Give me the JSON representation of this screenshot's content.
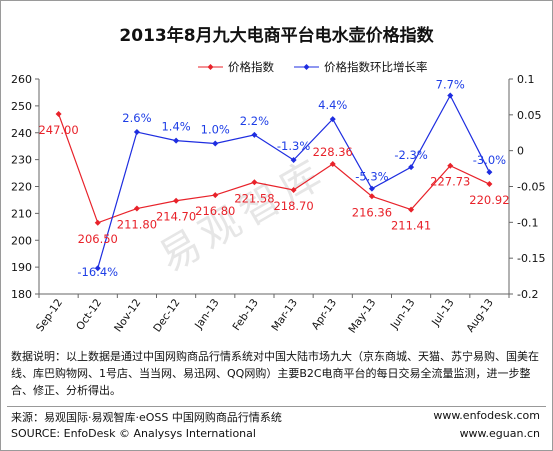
{
  "header": {
    "title": "2013年8月九大电商平台电水壶价格指数"
  },
  "colors": {
    "index_line": "#e8222a",
    "growth_line": "#1e2de0",
    "growth_label": "#1e3ee6",
    "index_label": "#e8222a"
  },
  "chart_data": {
    "type": "line",
    "categories": [
      "Sep-12",
      "Oct-12",
      "Nov-12",
      "Dec-12",
      "Jan-13",
      "Feb-13",
      "Mar-13",
      "Apr-13",
      "May-13",
      "Jun-13",
      "Jul-13",
      "Aug-13"
    ],
    "series": [
      {
        "name": "价格指数",
        "axis": "left",
        "values": [
          247.0,
          206.5,
          211.8,
          214.7,
          216.8,
          221.58,
          218.7,
          228.36,
          216.36,
          211.41,
          227.73,
          220.92
        ],
        "labels": [
          "247.00",
          "206.50",
          "211.80",
          "214.70",
          "216.80",
          "221.58",
          "218.70",
          "228.36",
          "216.36",
          "211.41",
          "227.73",
          "220.92"
        ]
      },
      {
        "name": "价格指数环比增长率",
        "axis": "right",
        "values": [
          null,
          -0.164,
          0.026,
          0.014,
          0.01,
          0.022,
          -0.013,
          0.044,
          -0.053,
          -0.023,
          0.077,
          -0.03
        ],
        "labels": [
          "",
          "-16.4%",
          "2.6%",
          "1.4%",
          "1.0%",
          "2.2%",
          "-1.3%",
          "4.4%",
          "-5.3%",
          "-2.3%",
          "7.7%",
          "-3.0%"
        ]
      }
    ],
    "y_left": {
      "min": 180,
      "max": 260,
      "ticks": [
        "180",
        "190",
        "200",
        "210",
        "220",
        "230",
        "240",
        "250",
        "260"
      ]
    },
    "y_right": {
      "min": -0.2,
      "max": 0.1,
      "ticks": [
        "-0.2",
        "-0.15",
        "-0.1",
        "-0.05",
        "0",
        "0.05",
        "0.1"
      ]
    },
    "grid": false,
    "legend": "top"
  },
  "watermark": "易观智库",
  "note": "数据说明：以上数据是通过中国网购商品行情系统对中国大陆市场九大（京东商城、天猫、苏宁易购、国美在线、库巴购物网、1号店、当当网、易迅网、QQ网购）主要B2C电商平台的每日交易全流量监测，进一步整合、修正、分析得出。",
  "footer": {
    "source_cn": "来源：易观国际·易观智库·eOSS 中国网购商品行情系统",
    "source_en": "SOURCE:  EnfoDesk © Analysys International",
    "url1": "www.enfodesk.com",
    "url2": "www.eguan.cn"
  }
}
